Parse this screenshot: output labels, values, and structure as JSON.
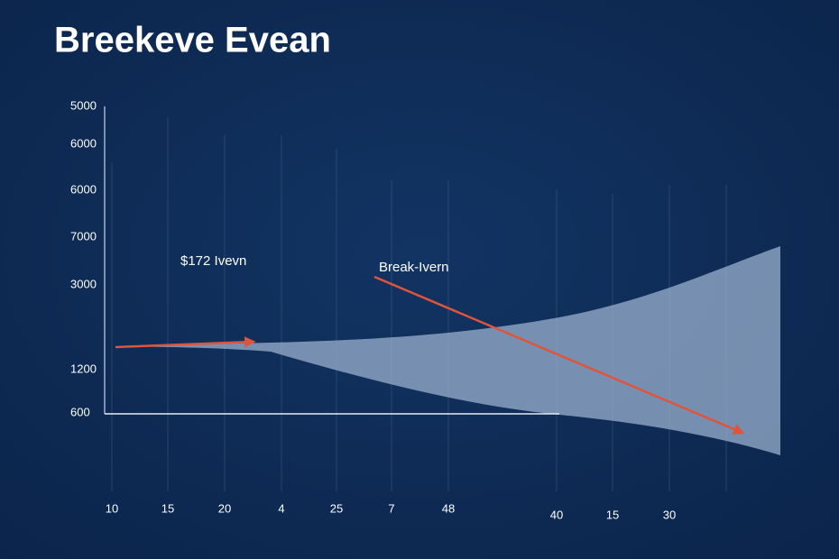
{
  "title": "Breekeve Evean",
  "y_labels": [
    5000,
    6000,
    6000,
    7000,
    3000,
    1200,
    600
  ],
  "x_labels": [
    10,
    15,
    20,
    4,
    25,
    7,
    48,
    40,
    15,
    30
  ],
  "annotations": [
    "$172 Ivevn",
    "Break-Ivern"
  ]
}
